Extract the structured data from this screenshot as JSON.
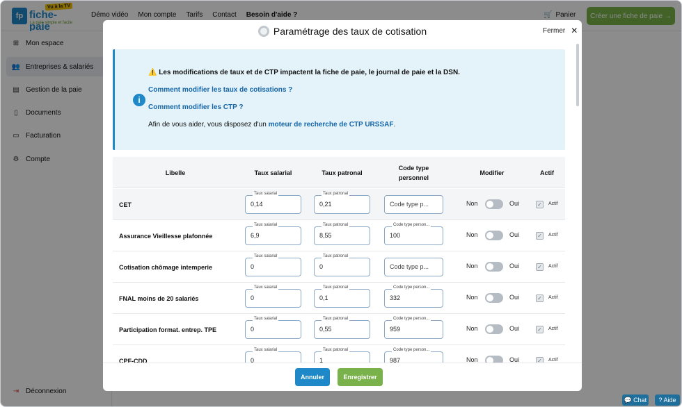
{
  "header": {
    "logo_name": "fiche-paie",
    "logo_badge": "Vu à la TV",
    "logo_tagline": "La paie simple et facile",
    "nav": [
      "Démo vidéo",
      "Mon compte",
      "Tarifs",
      "Contact",
      "Besoin d'aide ?"
    ],
    "cart_label": "Panier",
    "create_button": "Créer une fiche de paie →"
  },
  "sidebar": {
    "items": [
      {
        "label": "Mon espace",
        "icon": "grid-icon"
      },
      {
        "label": "Entreprises & salariés",
        "icon": "users-icon",
        "active": true
      },
      {
        "label": "Gestion de la paie",
        "icon": "payslip-icon"
      },
      {
        "label": "Documents",
        "icon": "document-icon"
      },
      {
        "label": "Facturation",
        "icon": "folder-icon"
      },
      {
        "label": "Compte",
        "icon": "gear-icon"
      }
    ],
    "logout": "Déconnexion"
  },
  "modal": {
    "title": "Paramétrage des taux de cotisation",
    "close_label": "Fermer",
    "info": {
      "warning": "Les modifications de taux et de CTP impactent la fiche de paie, le journal de paie et la DSN.",
      "link1": "Comment modifier les taux de cotisations ?",
      "link2": "Comment modifier les CTP ?",
      "help_prefix": "Afin de vous aider, vous disposez d'un",
      "help_link": "moteur de recherche de CTP URSSAF",
      "help_suffix": "."
    },
    "table": {
      "headers": {
        "libelle": "Libelle",
        "taux_salarial": "Taux salarial",
        "taux_patronal": "Taux patronal",
        "code_type_line1": "Code type",
        "code_type_line2": "personnel",
        "modifier": "Modifier",
        "actif": "Actif"
      },
      "field_labels": {
        "taux_salarial": "Taux salarial",
        "taux_patronal": "Taux patronal",
        "code_type": "Code type person..."
      },
      "code_placeholder": "Code type p...",
      "non": "Non",
      "oui": "Oui",
      "actif": "Actif",
      "rows": [
        {
          "libelle": "CET",
          "taux_salarial": "0,14",
          "taux_patronal": "0,21",
          "code": ""
        },
        {
          "libelle": "Assurance Vieillesse plafonnée",
          "taux_salarial": "6,9",
          "taux_patronal": "8,55",
          "code": "100"
        },
        {
          "libelle": "Cotisation chômage intemperie",
          "taux_salarial": "0",
          "taux_patronal": "0",
          "code": ""
        },
        {
          "libelle": "FNAL moins de 20 salariés",
          "taux_salarial": "0",
          "taux_patronal": "0,1",
          "code": "332"
        },
        {
          "libelle": "Participation format. entrep. TPE",
          "taux_salarial": "0",
          "taux_patronal": "0,55",
          "code": "959"
        },
        {
          "libelle": "CPF-CDD",
          "taux_salarial": "0",
          "taux_patronal": "1",
          "code": "987"
        }
      ]
    },
    "cancel_button": "Annuler",
    "save_button": "Enregistrer"
  },
  "widgets": {
    "chat": "Chat",
    "help": "Aide"
  },
  "colors": {
    "brand_blue": "#1e88c8",
    "brand_green": "#79b24a",
    "info_bg": "#e3f3f9"
  }
}
